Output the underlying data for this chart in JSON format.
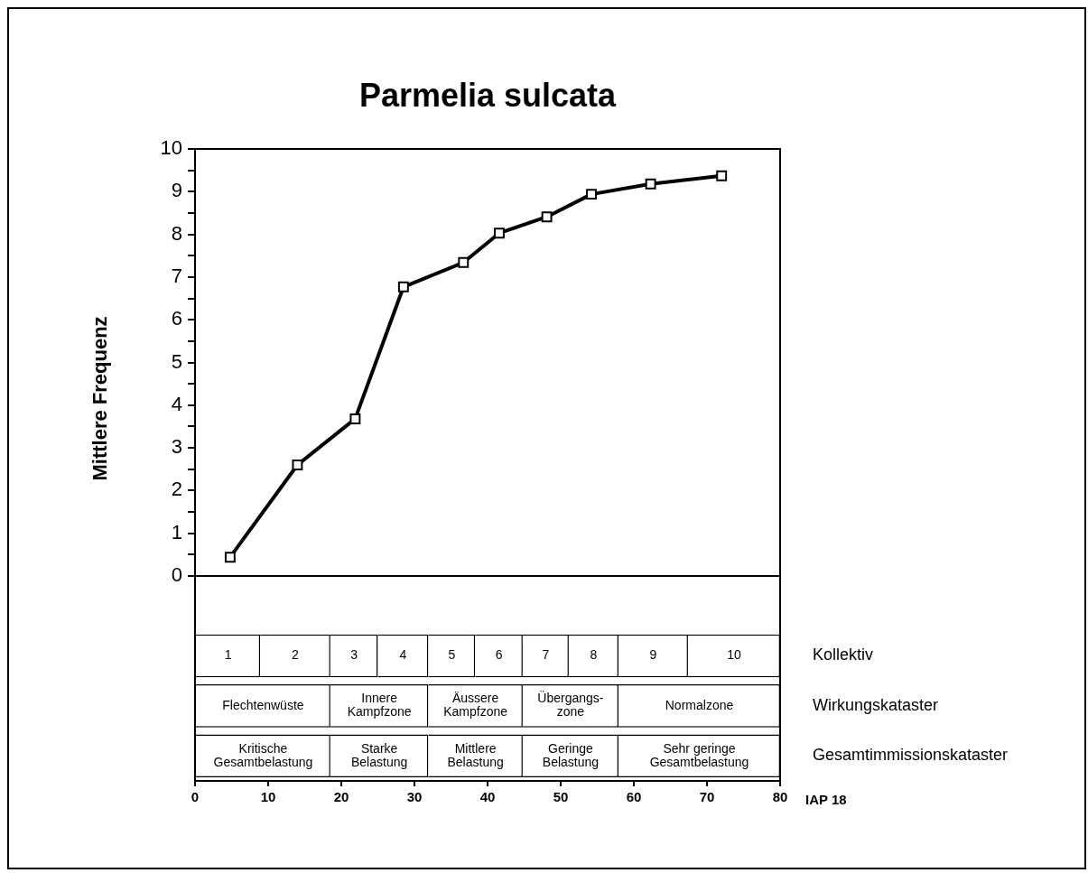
{
  "chart_data": [
    {
      "type": "line",
      "title": "Parmelia sulcata",
      "ylabel": "Mittlere Frequenz",
      "x": [
        4.8,
        14.0,
        21.9,
        28.5,
        36.7,
        41.6,
        48.1,
        54.2,
        62.3,
        72.0
      ],
      "values": [
        0.44,
        2.6,
        3.68,
        6.77,
        7.34,
        8.03,
        8.41,
        8.94,
        9.18,
        9.37
      ],
      "color": "#000000",
      "marker": "square",
      "line_style": "solid",
      "grid": false,
      "legend": false,
      "tick_labels": "y",
      "xlim": [
        0,
        80
      ],
      "ylim": [
        0,
        10
      ],
      "yticks": [
        0,
        {
          "value": 0.5,
          "label": null
        },
        1,
        {
          "value": 1.5,
          "label": null
        },
        2,
        {
          "value": 2.5,
          "label": null
        },
        3,
        {
          "value": 3.5,
          "label": null
        },
        4,
        {
          "value": 4.5,
          "label": null
        },
        5,
        {
          "value": 5.5,
          "label": null
        },
        6,
        {
          "value": 6.5,
          "label": null
        },
        7,
        {
          "value": 7.5,
          "label": null
        },
        8,
        {
          "value": 8.5,
          "label": null
        },
        9,
        {
          "value": 9.5,
          "label": null
        },
        10
      ]
    },
    {
      "type": "bar",
      "orientation": "horizontal",
      "stacked": true,
      "xlabel": "IAP 18",
      "legend": false,
      "grid": false,
      "categories": [
        "Kollektiv",
        "Wirkungskataster",
        "Gesamtimmissionskataster"
      ],
      "xlim": [
        0,
        80
      ],
      "xticks": [
        0,
        10,
        20,
        30,
        40,
        50,
        60,
        70,
        80
      ],
      "series": [
        {
          "name": "1",
          "color": "#ffffff",
          "values": [
            8.9,
            null,
            null
          ]
        },
        {
          "name": "2",
          "color": "#ffffff",
          "values": [
            9.6,
            null,
            null
          ]
        },
        {
          "name": "3",
          "color": "#ffffff",
          "values": [
            6.5,
            null,
            null
          ]
        },
        {
          "name": "4",
          "color": "#ffffff",
          "values": [
            6.9,
            null,
            null
          ]
        },
        {
          "name": "5",
          "color": "#ffffff",
          "values": [
            6.4,
            null,
            null
          ]
        },
        {
          "name": "6",
          "color": "#ffffff",
          "values": [
            6.5,
            null,
            null
          ]
        },
        {
          "name": "7",
          "color": "#ffffff",
          "values": [
            6.3,
            null,
            null
          ]
        },
        {
          "name": "8",
          "color": "#ffffff",
          "values": [
            6.8,
            null,
            null
          ]
        },
        {
          "name": "9",
          "color": "#ffffff",
          "values": [
            9.5,
            null,
            null
          ]
        },
        {
          "name": "10",
          "color": "#ffffff",
          "values": [
            12.6,
            null,
            null
          ]
        },
        {
          "color": "#ffffff",
          "values": [
            null,
            18.5,
            18.5
          ],
          "value_labels": [
            null,
            "Flechtenwüste",
            "Kritische\nGesamtbelastung"
          ]
        },
        {
          "color": "#ffffff",
          "values": [
            null,
            13.4,
            13.4
          ],
          "value_labels": [
            null,
            "Innere\nKampfzone",
            "Starke\nBelastung"
          ]
        },
        {
          "color": "#ffffff",
          "values": [
            null,
            12.9,
            12.9
          ],
          "value_labels": [
            null,
            "Äussere\nKampfzone",
            "Mittlere\nBelastung"
          ]
        },
        {
          "color": "#ffffff",
          "values": [
            null,
            13.1,
            13.1
          ],
          "value_labels": [
            null,
            "Übergangs-\nzone",
            "Geringe\nBelastung"
          ]
        },
        {
          "color": "#ffffff",
          "values": [
            null,
            22.1,
            22.1
          ],
          "value_labels": [
            null,
            "Normalzone",
            "Sehr geringe\nGesamtbelastung"
          ]
        }
      ]
    }
  ]
}
